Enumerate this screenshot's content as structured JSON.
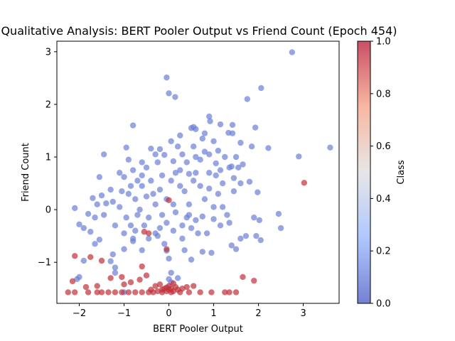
{
  "chart_data": {
    "type": "scatter",
    "title": "Qualitative Analysis: BERT Pooler Output vs Friend Count (Epoch 454)",
    "xlabel": "BERT Pooler Output",
    "ylabel": "Friend Count",
    "xlim": [
      -2.5,
      3.8
    ],
    "ylim": [
      -1.78,
      3.2
    ],
    "xticks": [
      "−2",
      "−1",
      "0",
      "1",
      "2",
      "3"
    ],
    "xtick_values": [
      -2,
      -1,
      0,
      1,
      2,
      3
    ],
    "yticks": [
      "−1",
      "0",
      "1",
      "2",
      "3"
    ],
    "ytick_values": [
      -1,
      0,
      1,
      2,
      3
    ],
    "grid": false,
    "colormap": "coolwarm",
    "colorbar": {
      "label": "Class",
      "ticks": [
        "0.0",
        "0.2",
        "0.4",
        "0.6",
        "0.8",
        "1.0"
      ],
      "tick_values": [
        0,
        0.2,
        0.4,
        0.6,
        0.8,
        1.0
      ]
    },
    "colors": {
      "class0": "#6b80d6",
      "class1": "#c0303b"
    },
    "series": [
      {
        "class": 0,
        "points": [
          [
            2.75,
            2.99
          ],
          [
            -0.05,
            2.51
          ],
          [
            0,
            2.21
          ],
          [
            0.14,
            2.14
          ],
          [
            2.06,
            2.31
          ],
          [
            1.75,
            2.1
          ],
          [
            0.9,
            1.77
          ],
          [
            0.92,
            1.68
          ],
          [
            1.15,
            1.62
          ],
          [
            1.42,
            1.61
          ],
          [
            0.55,
            1.57
          ],
          [
            0.6,
            1.53
          ],
          [
            0.5,
            1.55
          ],
          [
            0.8,
            1.45
          ],
          [
            0.25,
            1.41
          ],
          [
            -0.2,
            1.15
          ],
          [
            -1.45,
            1.05
          ],
          [
            -0.95,
            1.18
          ],
          [
            -0.8,
            1.6
          ],
          [
            1.33,
            1.46
          ],
          [
            1.42,
            1.45
          ],
          [
            1.6,
            1.27
          ],
          [
            1.85,
            1.2
          ],
          [
            1.93,
            1.56
          ],
          [
            2.22,
            1.17
          ],
          [
            2.9,
            1.01
          ],
          [
            3.6,
            1.18
          ],
          [
            1.8,
            0.53
          ],
          [
            1.65,
            0.86
          ],
          [
            1.55,
            0.8
          ],
          [
            1.4,
            0.82
          ],
          [
            1.98,
            0.33
          ],
          [
            1.9,
            -0.15
          ],
          [
            2.02,
            -0.2
          ],
          [
            2.45,
            -0.08
          ],
          [
            2.5,
            -0.35
          ],
          [
            1.72,
            -0.5
          ],
          [
            1.6,
            -0.55
          ],
          [
            1.95,
            -0.5
          ],
          [
            2.05,
            -0.58
          ],
          [
            1.5,
            -0.75
          ],
          [
            1.4,
            -0.68
          ],
          [
            -2.1,
            0.03
          ],
          [
            -2.0,
            -0.28
          ],
          [
            -1.9,
            -0.35
          ],
          [
            -1.75,
            -0.42
          ],
          [
            -2.05,
            -1.32
          ],
          [
            -2.0,
            -1.28
          ],
          [
            -1.9,
            -0.97
          ],
          [
            -1.55,
            -0.57
          ],
          [
            -1.65,
            -0.65
          ],
          [
            -1.25,
            -0.85
          ],
          [
            -1.3,
            -0.98
          ],
          [
            -1.2,
            -1.1
          ],
          [
            -1.2,
            -1.2
          ],
          [
            -1.0,
            -1.57
          ],
          [
            -1.0,
            -0.75
          ],
          [
            -0.8,
            -0.6
          ],
          [
            -0.6,
            -0.77
          ],
          [
            -0.8,
            -0.55
          ],
          [
            -0.3,
            -0.45
          ],
          [
            -0.1,
            -0.65
          ],
          [
            -0.05,
            -0.78
          ],
          [
            0,
            -0.93
          ],
          [
            0.05,
            -1.2
          ],
          [
            0.35,
            -0.77
          ],
          [
            0.5,
            -0.95
          ],
          [
            0.75,
            -0.8
          ],
          [
            0.95,
            -0.82
          ],
          [
            0.65,
            -0.45
          ],
          [
            0.3,
            -0.3
          ],
          [
            0.6,
            -0.2
          ],
          [
            0.75,
            -0.13
          ],
          [
            1.0,
            -0.18
          ],
          [
            1.3,
            -0.1
          ],
          [
            1.35,
            -0.25
          ],
          [
            1.2,
            0.05
          ],
          [
            1.0,
            0.05
          ],
          [
            0.8,
            0.2
          ],
          [
            0.45,
            0.1
          ],
          [
            -1.7,
            0.22
          ],
          [
            -1.5,
            0.27
          ],
          [
            -1.4,
            0.12
          ],
          [
            -1.65,
            -0.15
          ],
          [
            -1.55,
            0.62
          ],
          [
            -1.3,
            0.38
          ],
          [
            -1.0,
            0.62
          ],
          [
            -0.8,
            0.75
          ],
          [
            -0.5,
            0.8
          ],
          [
            -0.4,
            1.16
          ],
          [
            -0.1,
            1.04
          ],
          [
            0.1,
            0.92
          ],
          [
            0.25,
            0.75
          ],
          [
            0.45,
            0.68
          ],
          [
            0.6,
            0.7
          ],
          [
            0.7,
            0.95
          ],
          [
            0.9,
            1.05
          ],
          [
            1.05,
            0.88
          ],
          [
            1.25,
            1.0
          ],
          [
            1.1,
            1.12
          ],
          [
            0.35,
            0.35
          ],
          [
            0.1,
            0.1
          ],
          [
            -0.2,
            0.38
          ],
          [
            -0.6,
            0.45
          ],
          [
            -0.3,
            0.1
          ],
          [
            -0.7,
            -0.1
          ],
          [
            -1.1,
            0.05
          ],
          [
            -0.9,
            0.3
          ],
          [
            -1.2,
            -0.3
          ],
          [
            -1.0,
            -0.45
          ],
          [
            -0.55,
            -0.3
          ],
          [
            -0.05,
            -0.25
          ],
          [
            0.3,
            -0.55
          ],
          [
            0.5,
            -0.35
          ],
          [
            1.2,
            0.5
          ],
          [
            1.35,
            0.8
          ],
          [
            0.9,
            0.4
          ],
          [
            -0.25,
            0.9
          ],
          [
            0.05,
            0.55
          ],
          [
            -0.75,
            0.2
          ],
          [
            -1.45,
            -0.1
          ],
          [
            -1.8,
            -0.08
          ],
          [
            0.2,
            1.2
          ],
          [
            0.55,
            1.2
          ],
          [
            0.75,
            1.35
          ],
          [
            -0.3,
            1.05
          ],
          [
            0.05,
            1.3
          ],
          [
            1.5,
            1.0
          ],
          [
            1.0,
            1.3
          ],
          [
            0.4,
            0.9
          ],
          [
            -0.6,
            0.65
          ],
          [
            -0.4,
            0.55
          ],
          [
            0.15,
            -0.05
          ],
          [
            -0.15,
            -0.1
          ],
          [
            -0.45,
            -0.15
          ],
          [
            0.7,
            0.45
          ],
          [
            1.05,
            0.65
          ],
          [
            -0.85,
            -0.3
          ],
          [
            -0.25,
            -0.5
          ],
          [
            0.85,
            -0.45
          ],
          [
            1.15,
            -0.3
          ],
          [
            0.25,
            0.45
          ],
          [
            -0.05,
            0.2
          ],
          [
            0.45,
            -0.1
          ],
          [
            -0.5,
            0.25
          ],
          [
            -1.1,
            0.7
          ],
          [
            -0.9,
            0.95
          ],
          [
            -0.7,
            0.55
          ],
          [
            0.6,
            1.0
          ],
          [
            0.3,
            1.05
          ],
          [
            0.15,
            0.7
          ],
          [
            -0.15,
            0.65
          ],
          [
            -0.35,
            0.3
          ],
          [
            -0.65,
            0.0
          ],
          [
            -0.95,
            -0.15
          ],
          [
            -1.25,
            0.15
          ],
          [
            -1.6,
            0.1
          ],
          [
            1.45,
            0.35
          ],
          [
            1.6,
            0.5
          ],
          [
            1.1,
            0.3
          ],
          [
            0.9,
            0.7
          ],
          [
            0.55,
            0.55
          ],
          [
            -0.2,
            -0.35
          ],
          [
            0.1,
            -0.4
          ],
          [
            0.4,
            -0.15
          ],
          [
            -0.6,
            0.9
          ],
          [
            -0.85,
            0.45
          ],
          [
            -1.05,
            0.35
          ],
          [
            0.8,
            1.1
          ],
          [
            1.15,
            0.75
          ],
          [
            1.45,
            0.6
          ],
          [
            -0.45,
            -0.55
          ],
          [
            -0.75,
            -0.4
          ],
          [
            0.05,
            -1.38
          ],
          [
            0.0,
            -1.32
          ],
          [
            0.2,
            -1.3
          ]
        ]
      },
      {
        "class": 1,
        "points": [
          [
            3.02,
            0.51
          ],
          [
            0.0,
            0.18
          ],
          [
            -0.05,
            -0.75
          ],
          [
            -0.55,
            -0.42
          ],
          [
            -0.45,
            -0.45
          ],
          [
            -0.6,
            -1.08
          ],
          [
            -0.5,
            -1.25
          ],
          [
            -2.1,
            -0.88
          ],
          [
            -1.75,
            -0.9
          ],
          [
            -1.5,
            -0.97
          ],
          [
            -1.3,
            -1.3
          ],
          [
            -1.05,
            -1.28
          ],
          [
            -0.85,
            -1.38
          ],
          [
            -0.65,
            -1.33
          ],
          [
            -2.15,
            -1.36
          ],
          [
            -1.85,
            -1.47
          ],
          [
            -1.6,
            -1.45
          ],
          [
            -1.0,
            -1.42
          ],
          [
            1.65,
            -1.28
          ],
          [
            1.9,
            -1.35
          ],
          [
            -2.25,
            -1.57
          ],
          [
            -2.1,
            -1.57
          ],
          [
            -1.8,
            -1.57
          ],
          [
            -1.6,
            -1.57
          ],
          [
            -1.5,
            -1.57
          ],
          [
            -1.35,
            -1.57
          ],
          [
            -1.2,
            -1.57
          ],
          [
            -1.05,
            -1.57
          ],
          [
            -0.9,
            -1.57
          ],
          [
            -0.75,
            -1.57
          ],
          [
            -0.6,
            -1.57
          ],
          [
            -0.45,
            -1.57
          ],
          [
            -0.35,
            -1.57
          ],
          [
            -0.25,
            -1.55
          ],
          [
            -0.15,
            -1.52
          ],
          [
            -0.1,
            -1.5
          ],
          [
            -0.05,
            -1.48
          ],
          [
            0.0,
            -1.45
          ],
          [
            0.05,
            -1.5
          ],
          [
            0.1,
            -1.55
          ],
          [
            0.15,
            -1.47
          ],
          [
            0.2,
            -1.52
          ],
          [
            0.25,
            -1.57
          ],
          [
            0.3,
            -1.5
          ],
          [
            -0.2,
            -1.42
          ],
          [
            0.1,
            -1.4
          ],
          [
            -0.05,
            -1.55
          ],
          [
            0.05,
            -1.57
          ],
          [
            0.0,
            -1.52
          ],
          [
            -0.15,
            -1.57
          ],
          [
            0.45,
            -1.57
          ],
          [
            0.7,
            -1.57
          ],
          [
            0.95,
            -1.57
          ],
          [
            1.25,
            -1.57
          ],
          [
            1.35,
            -1.57
          ],
          [
            1.5,
            -1.57
          ],
          [
            0.4,
            -1.47
          ],
          [
            -0.3,
            -1.45
          ],
          [
            -0.4,
            -1.52
          ],
          [
            0.55,
            -1.45
          ]
        ]
      }
    ]
  }
}
